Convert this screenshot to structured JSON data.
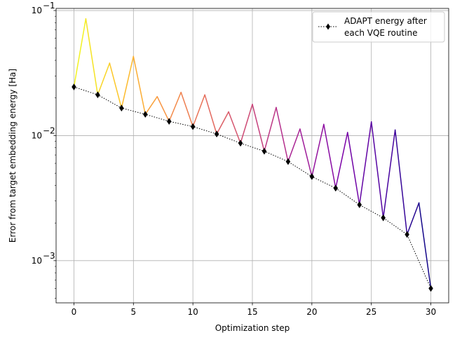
{
  "chart_data": {
    "type": "line",
    "xlabel": "Optimization step",
    "ylabel": "Error from target embedding energy [Ha]",
    "xlim": [
      -1.5,
      31.5
    ],
    "ylim": [
      0.00046,
      0.104
    ],
    "yscale": "log",
    "grid": true,
    "legend_placement": "top-right",
    "x_ticks": [
      0,
      5,
      10,
      15,
      20,
      25,
      30
    ],
    "y_ticks": [
      {
        "value": 0.001,
        "base": "10",
        "exp": "−3"
      },
      {
        "value": 0.01,
        "base": "10",
        "exp": "−2"
      },
      {
        "value": 0.1,
        "base": "10",
        "exp": "−1"
      }
    ],
    "colormap": "plasma",
    "vqe_trace": {
      "x": [
        0,
        1,
        2,
        3,
        4,
        5,
        6,
        7,
        8,
        9,
        10,
        11,
        12,
        13,
        14,
        15,
        16,
        17,
        18,
        19,
        20,
        21,
        22,
        23,
        24,
        25,
        26,
        27,
        28,
        29,
        30
      ],
      "y": [
        0.0245,
        0.086,
        0.0212,
        0.038,
        0.0166,
        0.043,
        0.0148,
        0.0205,
        0.013,
        0.0222,
        0.0118,
        0.0212,
        0.0103,
        0.0155,
        0.0087,
        0.0178,
        0.0075,
        0.0168,
        0.0062,
        0.0113,
        0.0047,
        0.0123,
        0.0038,
        0.0106,
        0.0028,
        0.0129,
        0.0022,
        0.0111,
        0.00162,
        0.0029,
        0.0006
      ]
    },
    "series": [
      {
        "name": "ADAPT energy after each VQE routine",
        "legend_lines": [
          "ADAPT energy after",
          "each VQE routine"
        ],
        "color": "#000000",
        "x": [
          0,
          2,
          4,
          6,
          8,
          10,
          12,
          14,
          16,
          18,
          20,
          22,
          24,
          26,
          28,
          30
        ],
        "y": [
          0.0245,
          0.0212,
          0.0166,
          0.0148,
          0.013,
          0.0118,
          0.0103,
          0.0087,
          0.0075,
          0.0062,
          0.0047,
          0.0038,
          0.0028,
          0.0022,
          0.00162,
          0.0006
        ]
      }
    ]
  }
}
